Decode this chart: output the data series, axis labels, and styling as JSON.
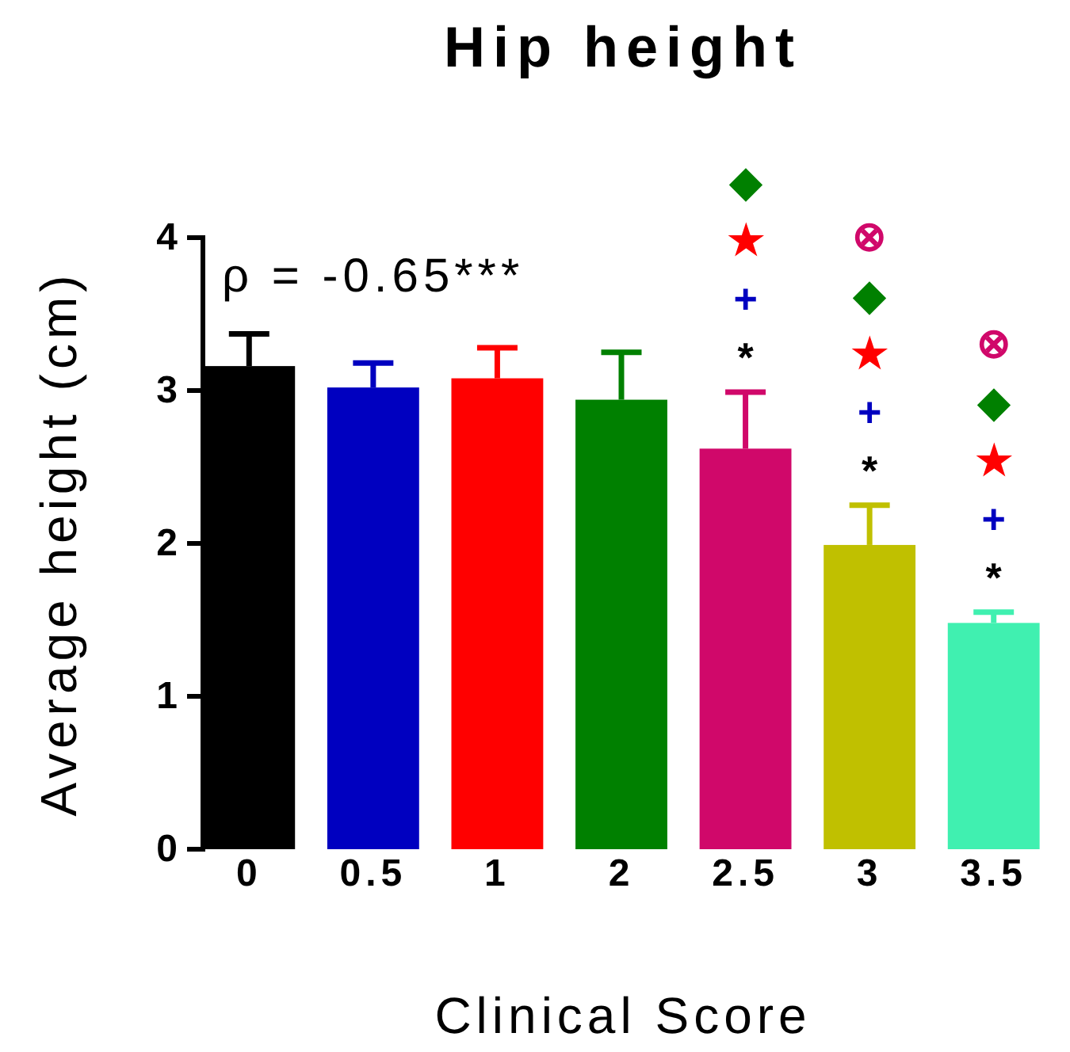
{
  "chart_data": {
    "type": "bar",
    "title": "Hip height",
    "xlabel": "Clinical Score",
    "ylabel": "Average height (cm)",
    "categories": [
      "0",
      "0.5",
      "1",
      "2",
      "2.5",
      "3",
      "3.5"
    ],
    "values": [
      3.16,
      3.02,
      3.08,
      2.94,
      2.62,
      1.99,
      1.48
    ],
    "colors": [
      "#000000",
      "#0000c0",
      "#ff0000",
      "#008000",
      "#d0086a",
      "#c0c000",
      "#40f0b0"
    ],
    "errors": [
      [
        3.16,
        3.37
      ],
      [
        3.02,
        3.18
      ],
      [
        3.08,
        3.28
      ],
      [
        2.94,
        3.25
      ],
      [
        2.62,
        2.99
      ],
      [
        1.99,
        2.25
      ],
      [
        1.48,
        1.55
      ]
    ],
    "ylim": [
      0,
      4
    ],
    "yticks": [
      0,
      1,
      2,
      3,
      4
    ],
    "annotations": [
      "ρ = -0.65***",
      "◆★+*",
      "⊗◆★+*",
      "⊗◆★+*"
    ]
  }
}
